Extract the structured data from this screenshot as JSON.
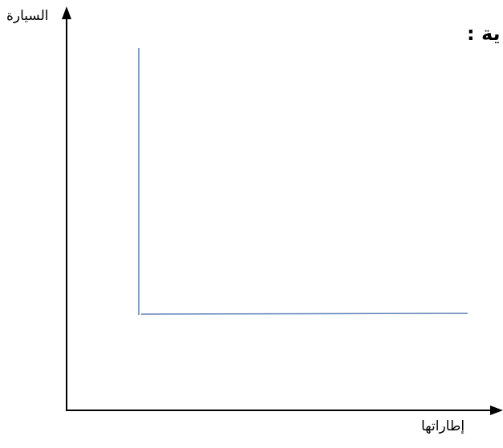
{
  "heading": "ية :",
  "chart_data": {
    "type": "line",
    "title": "",
    "xlabel": "إطاراتها",
    "ylabel": "السيارة",
    "grid": false,
    "legend": "none",
    "axis_color": "#000000",
    "line_color": "#5b7fb5"
  }
}
